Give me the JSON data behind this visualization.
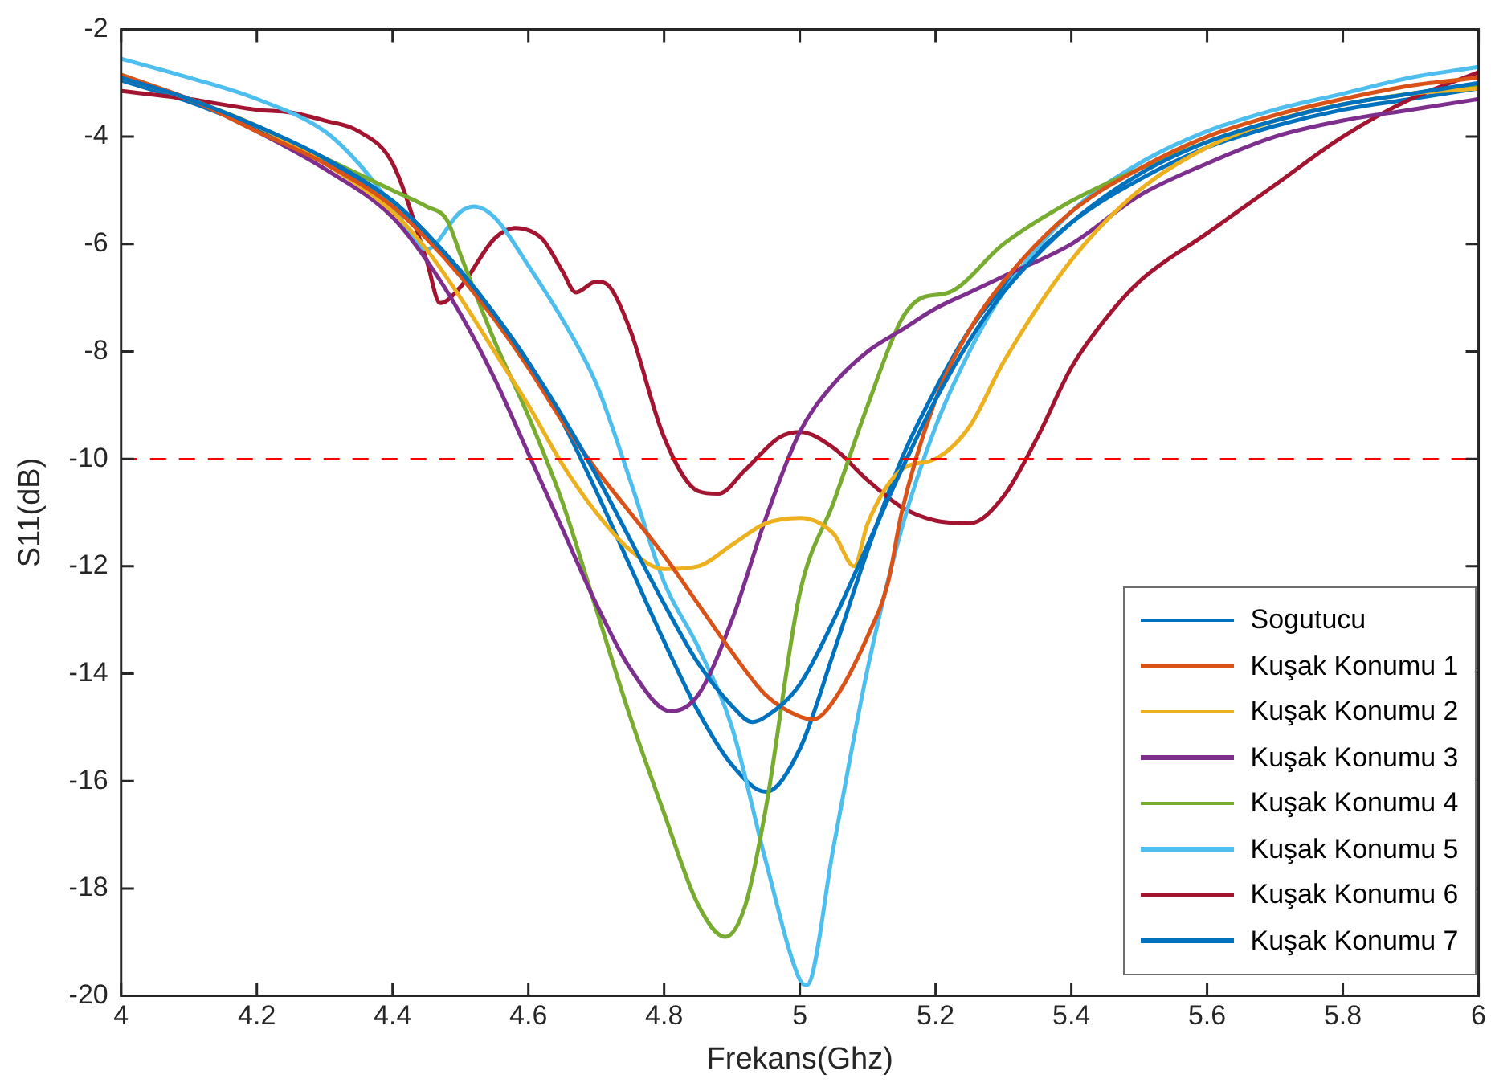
{
  "chart_data": {
    "type": "line",
    "xlabel": "Frekans(Ghz)",
    "ylabel": "S11(dB)",
    "xlim": [
      4,
      6
    ],
    "ylim": [
      -20,
      -2
    ],
    "xticks": [
      4,
      4.2,
      4.4,
      4.6,
      4.8,
      5,
      5.2,
      5.4,
      5.6,
      5.8,
      6
    ],
    "yticks": [
      -20,
      -18,
      -16,
      -14,
      -12,
      -10,
      -8,
      -6,
      -4,
      -2
    ],
    "grid": false,
    "legend": "bottom right",
    "marker": "none",
    "line_style": "solid",
    "ref_lines": [
      {
        "axis": "y",
        "value": -10,
        "color": "#ff0000",
        "line_style": "dashed"
      }
    ],
    "series": [
      {
        "name": "Sogutucu",
        "color": "#0072bd",
        "x": [
          4,
          4.1,
          4.2,
          4.3,
          4.4,
          4.45,
          4.5,
          4.55,
          4.6,
          4.65,
          4.7,
          4.75,
          4.8,
          4.85,
          4.9,
          4.93,
          4.95,
          5,
          5.05,
          5.1,
          5.15,
          5.2,
          5.25,
          5.3,
          5.4,
          5.5,
          5.6,
          5.7,
          5.8,
          5.9,
          6
        ],
        "values": [
          -2.9,
          -3.3,
          -3.8,
          -4.4,
          -5.2,
          -5.8,
          -6.5,
          -7.3,
          -8.2,
          -9.2,
          -10.3,
          -11.5,
          -12.7,
          -13.8,
          -14.6,
          -14.9,
          -14.8,
          -14.2,
          -13,
          -11.6,
          -10.2,
          -8.9,
          -7.8,
          -6.9,
          -5.6,
          -4.7,
          -4.1,
          -3.7,
          -3.4,
          -3.2,
          -3
        ]
      },
      {
        "name": "Kuşak Konumu 1",
        "color": "#d95319",
        "x": [
          4,
          4.1,
          4.2,
          4.3,
          4.4,
          4.45,
          4.5,
          4.55,
          4.6,
          4.65,
          4.7,
          4.75,
          4.8,
          4.85,
          4.9,
          4.95,
          5,
          5.02,
          5.05,
          5.1,
          5.13,
          5.15,
          5.2,
          5.25,
          5.3,
          5.4,
          5.5,
          5.6,
          5.7,
          5.8,
          5.9,
          6
        ],
        "values": [
          -2.85,
          -3.3,
          -3.9,
          -4.5,
          -5.3,
          -5.9,
          -6.6,
          -7.4,
          -8.3,
          -9.3,
          -10.2,
          -11,
          -11.8,
          -12.7,
          -13.6,
          -14.4,
          -14.8,
          -14.85,
          -14.5,
          -13.3,
          -12.3,
          -11,
          -8.9,
          -7.6,
          -6.7,
          -5.4,
          -4.6,
          -4,
          -3.6,
          -3.3,
          -3.05,
          -2.9
        ]
      },
      {
        "name": "Kuşak Konumu 2",
        "color": "#edb120",
        "x": [
          4,
          4.1,
          4.2,
          4.3,
          4.4,
          4.45,
          4.5,
          4.55,
          4.6,
          4.65,
          4.7,
          4.75,
          4.8,
          4.85,
          4.9,
          4.95,
          5,
          5.05,
          5.08,
          5.1,
          5.15,
          5.2,
          5.25,
          5.3,
          5.4,
          5.5,
          5.6,
          5.7,
          5.8,
          5.9,
          6
        ],
        "values": [
          -2.9,
          -3.3,
          -3.8,
          -4.5,
          -5.4,
          -6.1,
          -7,
          -8,
          -9,
          -10.1,
          -11,
          -11.7,
          -12.05,
          -12,
          -11.6,
          -11.2,
          -11.1,
          -11.4,
          -12,
          -11.2,
          -10.2,
          -10,
          -9.4,
          -8.2,
          -6.3,
          -5,
          -4.2,
          -3.7,
          -3.4,
          -3.2,
          -3.1
        ]
      },
      {
        "name": "Kuşak Konumu 3",
        "color": "#7e2f8e",
        "x": [
          4,
          4.1,
          4.2,
          4.3,
          4.4,
          4.45,
          4.5,
          4.55,
          4.6,
          4.65,
          4.7,
          4.75,
          4.81,
          4.85,
          4.9,
          4.95,
          5,
          5.05,
          5.1,
          5.15,
          5.2,
          5.25,
          5.3,
          5.4,
          5.5,
          5.6,
          5.7,
          5.8,
          5.9,
          6
        ],
        "values": [
          -2.9,
          -3.3,
          -3.9,
          -4.6,
          -5.5,
          -6.3,
          -7.3,
          -8.5,
          -9.9,
          -11.3,
          -12.7,
          -13.9,
          -14.7,
          -14.4,
          -13,
          -11.1,
          -9.5,
          -8.6,
          -8,
          -7.6,
          -7.2,
          -6.9,
          -6.6,
          -6,
          -5.1,
          -4.5,
          -4,
          -3.7,
          -3.5,
          -3.3
        ]
      },
      {
        "name": "Kuşak Konumu 4",
        "color": "#77ac30",
        "x": [
          4,
          4.1,
          4.2,
          4.3,
          4.4,
          4.45,
          4.48,
          4.5,
          4.55,
          4.6,
          4.65,
          4.7,
          4.75,
          4.8,
          4.85,
          4.89,
          4.92,
          4.95,
          5,
          5.05,
          5.1,
          5.15,
          5.18,
          5.22,
          5.3,
          5.4,
          5.5,
          5.6,
          5.7,
          5.8,
          5.9,
          6
        ],
        "values": [
          -2.85,
          -3.3,
          -3.8,
          -4.4,
          -5,
          -5.3,
          -5.55,
          -6.2,
          -7.8,
          -9.2,
          -10.8,
          -12.8,
          -14.8,
          -16.6,
          -18.3,
          -18.9,
          -18.3,
          -16.5,
          -12.5,
          -10.8,
          -9,
          -7.4,
          -7,
          -6.9,
          -6,
          -5.2,
          -4.6,
          -4.1,
          -3.7,
          -3.4,
          -3.2,
          -3.05
        ]
      },
      {
        "name": "Kuşak Konumu 5",
        "color": "#4dbeee",
        "x": [
          4,
          4.1,
          4.2,
          4.3,
          4.35,
          4.4,
          4.45,
          4.5,
          4.52,
          4.55,
          4.6,
          4.65,
          4.7,
          4.75,
          4.8,
          4.85,
          4.9,
          4.95,
          5,
          5.01,
          5.05,
          5.1,
          5.15,
          5.2,
          5.25,
          5.3,
          5.4,
          5.5,
          5.6,
          5.7,
          5.8,
          5.9,
          6
        ],
        "values": [
          -2.55,
          -2.9,
          -3.3,
          -3.9,
          -4.5,
          -5.3,
          -6.1,
          -5.4,
          -5.3,
          -5.5,
          -6.4,
          -7.4,
          -8.6,
          -10.4,
          -12.3,
          -13.5,
          -15,
          -17.5,
          -19.7,
          -19.8,
          -17.2,
          -13.9,
          -11.3,
          -9.4,
          -8,
          -6.9,
          -5.4,
          -4.5,
          -3.9,
          -3.5,
          -3.2,
          -2.9,
          -2.7
        ]
      },
      {
        "name": "Kuşak Konumu 6",
        "color": "#a2142f",
        "x": [
          4,
          4.1,
          4.2,
          4.25,
          4.3,
          4.35,
          4.4,
          4.45,
          4.47,
          4.5,
          4.55,
          4.58,
          4.62,
          4.65,
          4.67,
          4.7,
          4.72,
          4.75,
          4.8,
          4.85,
          4.88,
          4.92,
          4.97,
          5,
          5.05,
          5.1,
          5.15,
          5.2,
          5.25,
          5.3,
          5.35,
          5.4,
          5.45,
          5.5,
          5.6,
          5.7,
          5.8,
          5.9,
          6
        ],
        "values": [
          -3.15,
          -3.3,
          -3.5,
          -3.55,
          -3.7,
          -3.9,
          -4.5,
          -6.3,
          -7.1,
          -6.8,
          -5.9,
          -5.7,
          -5.9,
          -6.5,
          -6.9,
          -6.7,
          -6.8,
          -7.6,
          -9.6,
          -10.6,
          -10.65,
          -10.2,
          -9.6,
          -9.5,
          -9.8,
          -10.4,
          -10.9,
          -11.15,
          -11.2,
          -10.7,
          -9.6,
          -8.3,
          -7.4,
          -6.7,
          -5.8,
          -4.9,
          -4,
          -3.3,
          -2.8
        ]
      },
      {
        "name": "Kuşak Konumu 7",
        "color": "#0072bd",
        "x": [
          4,
          4.1,
          4.2,
          4.3,
          4.4,
          4.45,
          4.5,
          4.55,
          4.6,
          4.65,
          4.7,
          4.75,
          4.8,
          4.85,
          4.9,
          4.95,
          5,
          5.05,
          5.1,
          5.15,
          5.2,
          5.25,
          5.3,
          5.4,
          5.5,
          5.6,
          5.7,
          5.8,
          5.9,
          6
        ],
        "values": [
          -2.95,
          -3.35,
          -3.85,
          -4.45,
          -5.2,
          -5.8,
          -6.5,
          -7.3,
          -8.2,
          -9.3,
          -10.6,
          -12,
          -13.4,
          -14.7,
          -15.7,
          -16.2,
          -15.4,
          -13.6,
          -11.7,
          -10,
          -8.7,
          -7.6,
          -6.8,
          -5.6,
          -4.8,
          -4.2,
          -3.8,
          -3.5,
          -3.3,
          -3.1
        ]
      }
    ]
  }
}
